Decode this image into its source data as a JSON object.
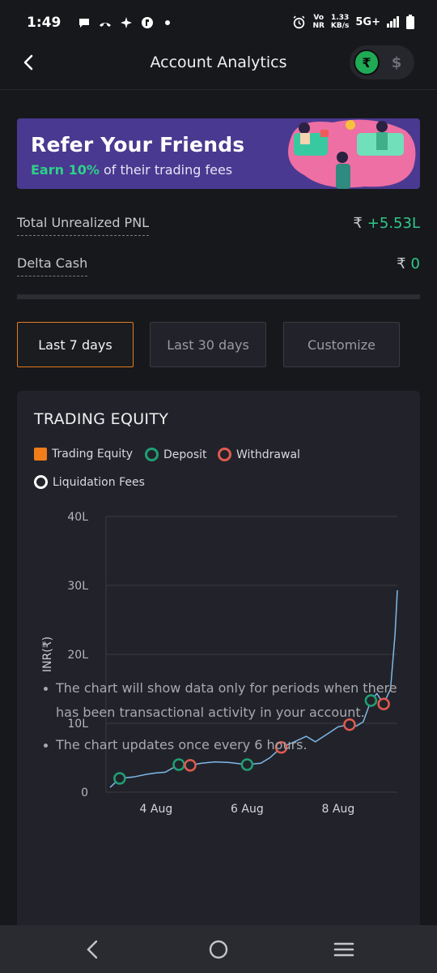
{
  "status_bar": {
    "time": "1:49",
    "network_label_top": "Vo",
    "network_label_bottom": "NR",
    "rate_value": "1.33",
    "rate_unit": "KB/s",
    "network_type": "5G+"
  },
  "header": {
    "title": "Account Analytics",
    "back_icon": "back-arrow-icon",
    "currency": {
      "inr_symbol": "₹",
      "usd_symbol": "$",
      "selected": "INR"
    }
  },
  "banner": {
    "title": "Refer Your Friends",
    "sub_highlight": "Earn 10%",
    "sub_rest": " of their trading fees"
  },
  "summary": {
    "pnl_label": "Total Unrealized PNL",
    "pnl_currency": "₹",
    "pnl_value": "+5.53L",
    "cash_label": "Delta Cash",
    "cash_currency": "₹",
    "cash_value": "0"
  },
  "period_tabs": [
    {
      "label": "Last 7 days",
      "active": true
    },
    {
      "label": "Last 30 days",
      "active": false
    },
    {
      "label": "Customize",
      "active": false
    }
  ],
  "card": {
    "title": "TRADING EQUITY",
    "legend": [
      {
        "label": "Trading Equity",
        "color": "#f07c1a",
        "shape": "square"
      },
      {
        "label": "Deposit",
        "color": "#1fa074",
        "shape": "circle"
      },
      {
        "label": "Withdrawal",
        "color": "#e05a4f",
        "shape": "circle"
      },
      {
        "label": "Liquidation Fees",
        "color": "#ffffff",
        "shape": "circle"
      }
    ],
    "notes": [
      "The chart will show data only for periods when there has been transactional activity in your account.",
      "The chart updates once every 6 hours."
    ]
  },
  "chart_data": {
    "type": "line",
    "ylabel": "INR(₹)",
    "ylim": [
      0,
      40
    ],
    "yticks": [
      "0",
      "10L",
      "20L",
      "30L",
      "40L"
    ],
    "xticks": [
      {
        "label": "4 Aug",
        "x": 4
      },
      {
        "label": "6 Aug",
        "x": 6
      },
      {
        "label": "8 Aug",
        "x": 8
      }
    ],
    "xlim": [
      2.9,
      9.3
    ],
    "grid": "horizontal",
    "line_color": "#7fb8e8",
    "series": [
      {
        "name": "Trading Equity",
        "points": [
          [
            2.99,
            0.7
          ],
          [
            3.2,
            2.0
          ],
          [
            3.5,
            2.2
          ],
          [
            3.8,
            2.6
          ],
          [
            4.0,
            2.8
          ],
          [
            4.2,
            2.9
          ],
          [
            4.5,
            4.0
          ],
          [
            4.75,
            3.9
          ],
          [
            5.0,
            4.2
          ],
          [
            5.3,
            4.4
          ],
          [
            5.6,
            4.3
          ],
          [
            6.0,
            4.0
          ],
          [
            6.3,
            4.2
          ],
          [
            6.5,
            5.0
          ],
          [
            6.75,
            6.5
          ],
          [
            7.0,
            7.2
          ],
          [
            7.3,
            8.1
          ],
          [
            7.5,
            7.3
          ],
          [
            7.8,
            8.6
          ],
          [
            8.0,
            9.5
          ],
          [
            8.25,
            9.8
          ],
          [
            8.4,
            9.6
          ],
          [
            8.55,
            10.2
          ],
          [
            8.72,
            13.3
          ],
          [
            8.85,
            14.3
          ],
          [
            9.0,
            12.8
          ],
          [
            9.15,
            15.0
          ],
          [
            9.25,
            23.0
          ],
          [
            9.3,
            29.3
          ]
        ]
      }
    ],
    "deposits": [
      [
        3.2,
        2.0
      ],
      [
        4.5,
        4.0
      ],
      [
        6.0,
        4.0
      ],
      [
        8.72,
        13.3
      ]
    ],
    "withdrawals": [
      [
        4.75,
        3.9
      ],
      [
        6.75,
        6.5
      ],
      [
        8.25,
        9.8
      ],
      [
        9.0,
        12.8
      ]
    ],
    "liquidation_fees": []
  },
  "nav": {
    "back_icon": "nav-back-icon",
    "home_icon": "nav-home-icon",
    "recents_icon": "nav-recents-icon"
  }
}
